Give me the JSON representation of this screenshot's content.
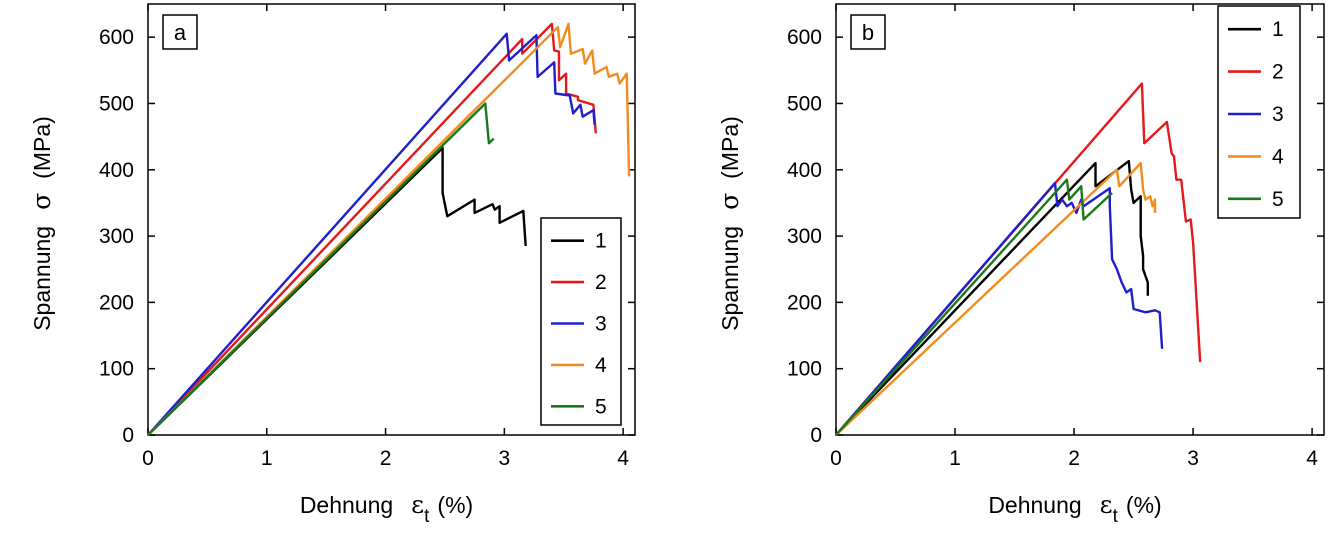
{
  "chart_data": [
    {
      "type": "line",
      "panel_label": "a",
      "xlabel": "Dehnung",
      "xlabel_symbol": "ε",
      "xlabel_subscript": "t",
      "xlabel_unit": "(%)",
      "ylabel": "Spannung",
      "ylabel_symbol": "σ",
      "ylabel_unit": "(MPa)",
      "xlim": [
        0,
        4.1
      ],
      "ylim": [
        0,
        650
      ],
      "xticks": [
        0,
        1,
        2,
        3,
        4
      ],
      "yticks": [
        0,
        100,
        200,
        300,
        400,
        500,
        600
      ],
      "legend_position": "bottom-right",
      "series": [
        {
          "name": "1",
          "color": "#000000",
          "points": [
            [
              0,
              0
            ],
            [
              2.48,
              433
            ],
            [
              2.48,
              365
            ],
            [
              2.52,
              330
            ],
            [
              2.75,
              355
            ],
            [
              2.75,
              335
            ],
            [
              2.9,
              348
            ],
            [
              2.92,
              340
            ],
            [
              2.96,
              345
            ],
            [
              2.96,
              320
            ],
            [
              3.16,
              338
            ],
            [
              3.18,
              285
            ]
          ]
        },
        {
          "name": "2",
          "color": "#e31a1c",
          "points": [
            [
              0,
              0
            ],
            [
              3.15,
              597
            ],
            [
              3.15,
              575
            ],
            [
              3.4,
              620
            ],
            [
              3.42,
              580
            ],
            [
              3.46,
              578
            ],
            [
              3.46,
              535
            ],
            [
              3.52,
              545
            ],
            [
              3.52,
              515
            ],
            [
              3.62,
              510
            ],
            [
              3.62,
              505
            ],
            [
              3.75,
              498
            ],
            [
              3.77,
              455
            ]
          ]
        },
        {
          "name": "3",
          "color": "#1f1fcc",
          "points": [
            [
              0,
              0
            ],
            [
              3.02,
              605
            ],
            [
              3.04,
              565
            ],
            [
              3.27,
              603
            ],
            [
              3.28,
              540
            ],
            [
              3.42,
              562
            ],
            [
              3.43,
              515
            ],
            [
              3.55,
              512
            ],
            [
              3.58,
              485
            ],
            [
              3.64,
              498
            ],
            [
              3.66,
              480
            ],
            [
              3.75,
              490
            ],
            [
              3.76,
              468
            ]
          ]
        },
        {
          "name": "4",
          "color": "#f28c1e",
          "points": [
            [
              0,
              0
            ],
            [
              3.45,
              615
            ],
            [
              3.47,
              585
            ],
            [
              3.54,
              620
            ],
            [
              3.56,
              575
            ],
            [
              3.66,
              582
            ],
            [
              3.68,
              560
            ],
            [
              3.74,
              580
            ],
            [
              3.76,
              545
            ],
            [
              3.86,
              555
            ],
            [
              3.88,
              540
            ],
            [
              3.95,
              545
            ],
            [
              3.97,
              530
            ],
            [
              4.03,
              545
            ],
            [
              4.05,
              390
            ]
          ]
        },
        {
          "name": "5",
          "color": "#1a7a1a",
          "points": [
            [
              0,
              0
            ],
            [
              2.84,
              500
            ],
            [
              2.87,
              440
            ],
            [
              2.91,
              447
            ]
          ]
        }
      ]
    },
    {
      "type": "line",
      "panel_label": "b",
      "xlabel": "Dehnung",
      "xlabel_symbol": "ε",
      "xlabel_subscript": "t",
      "xlabel_unit": "(%)",
      "ylabel": "Spannung",
      "ylabel_symbol": "σ",
      "ylabel_unit": "(MPa)",
      "xlim": [
        0,
        4.1
      ],
      "ylim": [
        0,
        650
      ],
      "xticks": [
        0,
        1,
        2,
        3,
        4
      ],
      "yticks": [
        0,
        100,
        200,
        300,
        400,
        500,
        600
      ],
      "legend_position": "top-right",
      "series": [
        {
          "name": "1",
          "color": "#000000",
          "points": [
            [
              0,
              0
            ],
            [
              2.18,
              410
            ],
            [
              2.18,
              375
            ],
            [
              2.46,
              413
            ],
            [
              2.48,
              370
            ],
            [
              2.5,
              350
            ],
            [
              2.56,
              360
            ],
            [
              2.56,
              300
            ],
            [
              2.58,
              270
            ],
            [
              2.58,
              250
            ],
            [
              2.62,
              230
            ],
            [
              2.62,
              210
            ]
          ]
        },
        {
          "name": "2",
          "color": "#e31a1c",
          "points": [
            [
              0,
              0
            ],
            [
              2.57,
              530
            ],
            [
              2.59,
              440
            ],
            [
              2.78,
              472
            ],
            [
              2.82,
              425
            ],
            [
              2.84,
              420
            ],
            [
              2.86,
              385
            ],
            [
              2.9,
              385
            ],
            [
              2.94,
              322
            ],
            [
              2.98,
              325
            ],
            [
              3.0,
              290
            ],
            [
              3.02,
              230
            ],
            [
              3.04,
              170
            ],
            [
              3.06,
              110
            ]
          ]
        },
        {
          "name": "3",
          "color": "#1f1fcc",
          "points": [
            [
              0,
              0
            ],
            [
              1.84,
              380
            ],
            [
              1.86,
              345
            ],
            [
              1.9,
              355
            ],
            [
              1.94,
              345
            ],
            [
              1.98,
              350
            ],
            [
              2.02,
              335
            ],
            [
              2.06,
              355
            ],
            [
              2.08,
              345
            ],
            [
              2.3,
              372
            ],
            [
              2.3,
              345
            ],
            [
              2.32,
              265
            ],
            [
              2.36,
              250
            ],
            [
              2.4,
              230
            ],
            [
              2.44,
              215
            ],
            [
              2.48,
              220
            ],
            [
              2.5,
              190
            ],
            [
              2.6,
              185
            ],
            [
              2.68,
              188
            ],
            [
              2.72,
              185
            ],
            [
              2.74,
              130
            ]
          ]
        },
        {
          "name": "4",
          "color": "#f28c1e",
          "points": [
            [
              0,
              0
            ],
            [
              2.36,
              400
            ],
            [
              2.38,
              375
            ],
            [
              2.56,
              410
            ],
            [
              2.58,
              370
            ],
            [
              2.6,
              355
            ],
            [
              2.64,
              360
            ],
            [
              2.66,
              345
            ],
            [
              2.68,
              355
            ],
            [
              2.68,
              335
            ]
          ]
        },
        {
          "name": "5",
          "color": "#1a7a1a",
          "points": [
            [
              0,
              0
            ],
            [
              1.94,
              385
            ],
            [
              1.96,
              355
            ],
            [
              2.06,
              375
            ],
            [
              2.08,
              325
            ],
            [
              2.32,
              365
            ]
          ]
        }
      ]
    }
  ]
}
